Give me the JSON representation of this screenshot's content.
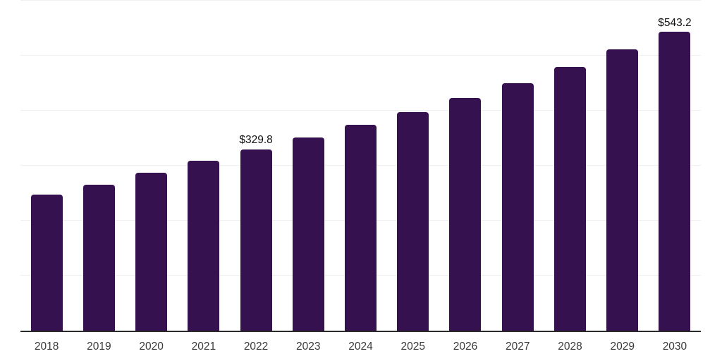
{
  "chart_data": {
    "type": "bar",
    "title": "",
    "categories": [
      "2018",
      "2019",
      "2020",
      "2021",
      "2022",
      "2023",
      "2024",
      "2025",
      "2026",
      "2027",
      "2028",
      "2029",
      "2030"
    ],
    "values": [
      248.0,
      265.5,
      287.0,
      309.0,
      329.8,
      351.5,
      374.0,
      398.0,
      423.5,
      450.5,
      479.5,
      511.0,
      543.2
    ],
    "data_labels": [
      {
        "category": "2022",
        "text": "$329.8"
      },
      {
        "category": "2030",
        "text": "$543.2"
      }
    ],
    "xlabel": "",
    "ylabel": "",
    "ylim": [
      0,
      600
    ],
    "y_gridlines": [
      100,
      200,
      300,
      400,
      500,
      600
    ],
    "grid": "horizontal",
    "legend": "none",
    "y_axis_labels_visible": false,
    "colors": {
      "bar": "#361150",
      "axis_line": "#2b2b2b",
      "gridline": "#f0f0f0",
      "tick_label": "#3a3a3a",
      "data_label": "#111111",
      "background": "#ffffff"
    }
  }
}
